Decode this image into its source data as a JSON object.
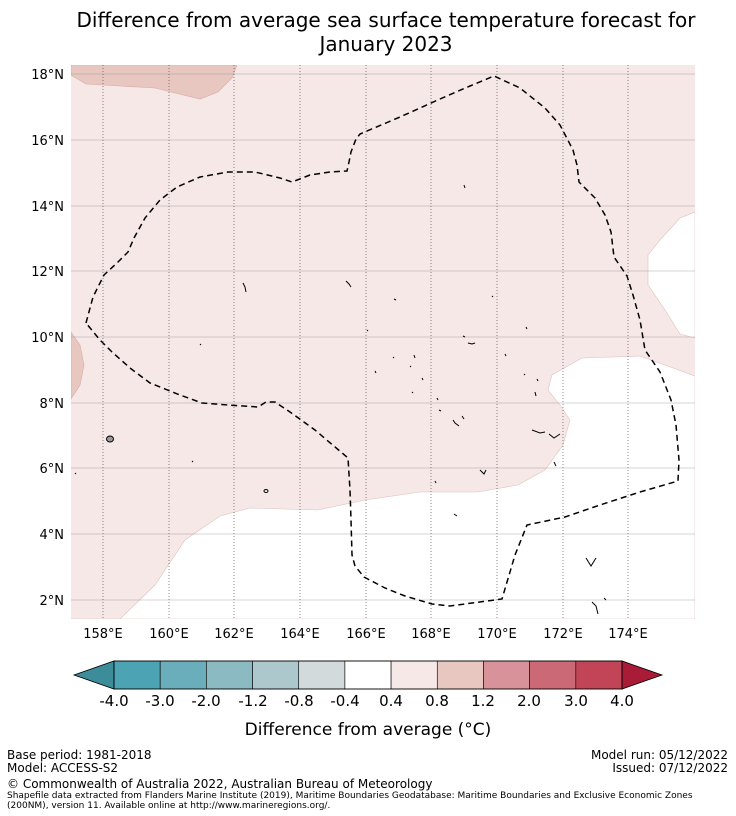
{
  "title_line1": "Difference from average sea surface temperature forecast for",
  "title_line2": "January 2023",
  "lat_labels": [
    "18°N",
    "16°N",
    "14°N",
    "12°N",
    "10°N",
    "8°N",
    "6°N",
    "4°N",
    "2°N"
  ],
  "lon_labels": [
    "158°E",
    "160°E",
    "162°E",
    "164°E",
    "166°E",
    "168°E",
    "170°E",
    "172°E",
    "174°E"
  ],
  "colorbar": {
    "ticks": [
      "-4.0",
      "-3.0",
      "-2.0",
      "-1.2",
      "-0.8",
      "-0.4",
      "0.4",
      "0.8",
      "1.2",
      "2.0",
      "3.0",
      "4.0"
    ],
    "colors": [
      "#4ba3b4",
      "#6aadbb",
      "#8bbac3",
      "#adc8cd",
      "#d2dadb",
      "#ffffff",
      "#f5e8e6",
      "#e8c7c1",
      "#d8939a",
      "#cc6977",
      "#c24457"
    ],
    "min_color": "#3c8c99",
    "max_color": "#a81c37",
    "label": "Difference from average ($^\\circ$C)",
    "label_display": "Difference from average (°C)"
  },
  "footer": {
    "base_period": "Base period: 1981-2018",
    "model": "Model: ACCESS-S2",
    "model_run": "Model run: 05/12/2022",
    "issued": "Issued: 07/12/2022",
    "copyright": "© Commonwealth of Australia 2022, Australian Bureau of Meteorology",
    "shapefile_line1": "Shapefile data extracted from Flanders Marine Institute (2019), Maritime Boundaries Geodatabase: Maritime Boundaries and Exclusive Economic Zones",
    "shapefile_line2": "(200NM), version 11. Available online at http://www.marineregions.org/."
  },
  "map_colors": {
    "band_04_08": "#f5e8e6",
    "band_08_12": "#e8c7c1",
    "no_anomaly": "#ffffff"
  }
}
